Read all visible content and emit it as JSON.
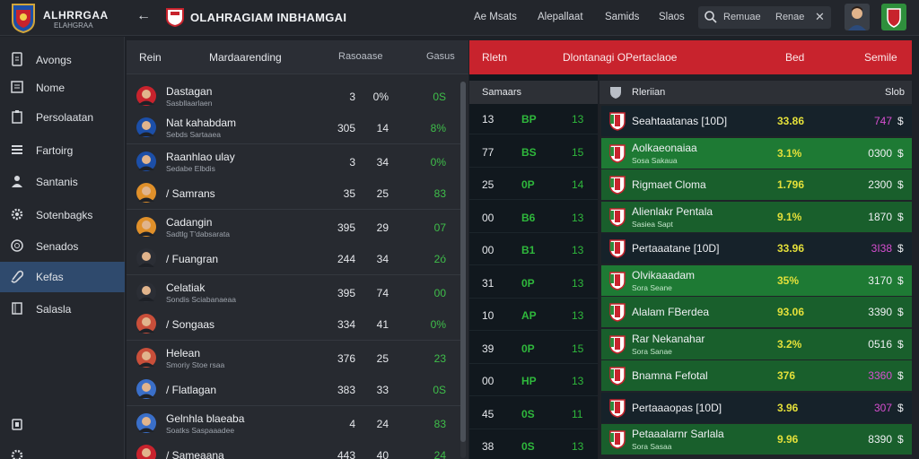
{
  "app": {
    "title": "ALHRRGAA",
    "subtitle": "ELAHGRAA",
    "page_title": "OLAHRAGIAM INBHAMGAI"
  },
  "nav": {
    "links": [
      "Ae Msats",
      "Alepallaat",
      "Samids",
      "Slaos"
    ],
    "search_placeholder": "Remuae",
    "search_scope": "Renae"
  },
  "sidebar": {
    "items": [
      {
        "label": "Avongs",
        "icon": "file-icon"
      },
      {
        "label": "Nome",
        "icon": "document-icon"
      },
      {
        "label": "Persolaatan",
        "icon": "clipboard-icon"
      },
      {
        "label": "Fartoirg",
        "icon": "list-icon"
      },
      {
        "label": "Santanis",
        "icon": "person-icon"
      },
      {
        "label": "Sotenbagks",
        "icon": "gear-icon"
      },
      {
        "label": "Senados",
        "icon": "globe-icon"
      },
      {
        "label": "Kefas",
        "icon": "link-icon"
      },
      {
        "label": "Salasla",
        "icon": "book-icon"
      }
    ],
    "active_index": 7
  },
  "players": {
    "headers": {
      "name": "Rein",
      "role": "Mardaarending",
      "c1": "Rasoaase",
      "c2": "Gasus"
    },
    "groups": [
      {
        "rows": [
          {
            "name": "Dastagan",
            "sub": "Sasbllaarlaen",
            "v1": "3",
            "v2": "0%",
            "v3": "0S"
          },
          {
            "name": "Nat kahabdam",
            "sub": "Sebds Sartaaea",
            "v1": "305",
            "v2": "14",
            "v3": "8%"
          }
        ]
      },
      {
        "rows": [
          {
            "name": "Raanhlao ulay",
            "sub": "Sedabe Elbdis",
            "v1": "3",
            "v2": "34",
            "v3": "0%"
          },
          {
            "name": "/ Samrans",
            "sub": "",
            "v1": "35",
            "v2": "25",
            "v3": "83"
          }
        ]
      },
      {
        "rows": [
          {
            "name": "Cadangin",
            "sub": "Sadtlg T'dabsarata",
            "v1": "395",
            "v2": "29",
            "v3": "07"
          },
          {
            "name": "/ Fuangran",
            "sub": "",
            "v1": "244",
            "v2": "34",
            "v3": "2ó"
          }
        ]
      },
      {
        "rows": [
          {
            "name": "Celatiak",
            "sub": "Sondis Sciabanaeaa",
            "v1": "395",
            "v2": "74",
            "v3": "00"
          },
          {
            "name": "/ Songaas",
            "sub": "",
            "v1": "334",
            "v2": "41",
            "v3": "0%"
          }
        ]
      },
      {
        "rows": [
          {
            "name": "Helean",
            "sub": "Smoriy Stoe rsaa",
            "v1": "376",
            "v2": "25",
            "v3": "23"
          },
          {
            "name": "/ Flatlagan",
            "sub": "",
            "v1": "383",
            "v2": "33",
            "v3": "0S"
          }
        ]
      },
      {
        "rows": [
          {
            "name": "Gelnhla blaeaba",
            "sub": "Soatks Saspaaadee",
            "v1": "4",
            "v2": "24",
            "v3": "83"
          },
          {
            "name": "/ Sameaana",
            "sub": "",
            "v1": "443",
            "v2": "40",
            "v3": "24"
          }
        ]
      }
    ]
  },
  "right_header": {
    "a": "Rletn",
    "b": "Dlontanagi OPertaclaoe",
    "c": "Bed",
    "d": "Semile"
  },
  "stats": {
    "sub_header": "Samaars",
    "rows": [
      {
        "a": "13",
        "b": "BP",
        "c": "13"
      },
      {
        "a": "77",
        "b": "BS",
        "c": "15"
      },
      {
        "a": "25",
        "b": "0P",
        "c": "14"
      },
      {
        "a": "00",
        "b": "B6",
        "c": "13"
      },
      {
        "a": "00",
        "b": "B1",
        "c": "13"
      },
      {
        "a": "31",
        "b": "0P",
        "c": "13"
      },
      {
        "a": "10",
        "b": "AP",
        "c": "13"
      },
      {
        "a": "39",
        "b": "0P",
        "c": "15"
      },
      {
        "a": "00",
        "b": "HP",
        "c": "13"
      },
      {
        "a": "45",
        "b": "0S",
        "c": "11"
      },
      {
        "a": "38",
        "b": "0S",
        "c": "13"
      }
    ]
  },
  "teams": {
    "header": {
      "title": "Rleriian",
      "size": "Slob"
    },
    "rows": [
      {
        "name": "Seahtaatanas [10D]",
        "sub": "",
        "pct": "33.86",
        "value": "747",
        "purple": true,
        "style": "dark"
      },
      {
        "name": "Aolkaeonaiaa",
        "sub": "Sosa Sakaua",
        "pct": "3.1%",
        "value": "0300",
        "purple": false,
        "style": "green"
      },
      {
        "name": "Rigmaet Cloma",
        "sub": "",
        "pct": "1.796",
        "value": "2300",
        "purple": false,
        "style": "mid"
      },
      {
        "name": "Alienlakr Pentala",
        "sub": "Sasiea Sapt",
        "pct": "9.1%",
        "value": "1870",
        "purple": false,
        "style": "mid"
      },
      {
        "name": "Pertaaatane [10D]",
        "sub": "",
        "pct": "33.96",
        "value": "3I38",
        "purple": true,
        "style": "dark"
      },
      {
        "name": "Olvikaaadam",
        "sub": "Sora Seane",
        "pct": "35%",
        "value": "3170",
        "purple": false,
        "style": "green"
      },
      {
        "name": "Alalam FBerdea",
        "sub": "",
        "pct": "93.06",
        "value": "3390",
        "purple": false,
        "style": "mid"
      },
      {
        "name": "Rar Nekanahar",
        "sub": "Sora Sanae",
        "pct": "3.2%",
        "value": "0516",
        "purple": false,
        "style": "mid"
      },
      {
        "name": "Bnamna Fefotal",
        "sub": "",
        "pct": "376",
        "value": "3360",
        "purple": true,
        "style": "mid"
      },
      {
        "name": "Pertaaaopas [10D]",
        "sub": "",
        "pct": "3.96",
        "value": "307",
        "purple": true,
        "style": "dark"
      },
      {
        "name": "Petaaalarnr Sarlala",
        "sub": "Sora Sasaa",
        "pct": "9.96",
        "value": "8390",
        "purple": false,
        "style": "mid"
      }
    ],
    "currency": "$"
  }
}
